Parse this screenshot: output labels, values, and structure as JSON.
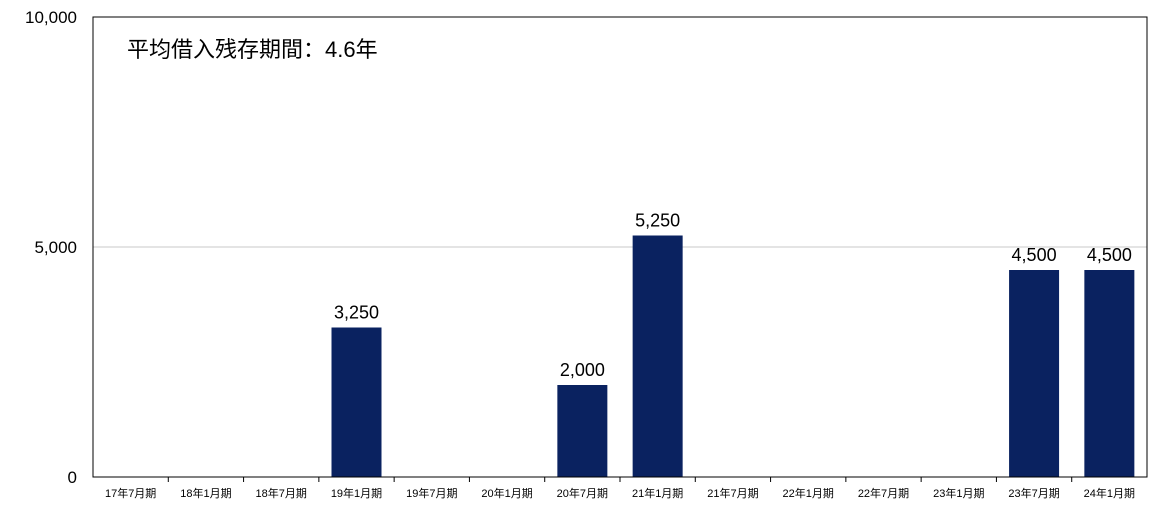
{
  "chart_data": {
    "type": "bar",
    "annotation": "平均借入残存期間：4.6年",
    "categories": [
      "17年7月期",
      "18年1月期",
      "18年7月期",
      "19年1月期",
      "19年7月期",
      "20年1月期",
      "20年7月期",
      "21年1月期",
      "21年7月期",
      "22年1月期",
      "22年7月期",
      "23年1月期",
      "23年7月期",
      "24年1月期"
    ],
    "values": [
      0,
      0,
      0,
      3250,
      0,
      0,
      2000,
      5250,
      0,
      0,
      0,
      0,
      4500,
      4500
    ],
    "value_labels": [
      "",
      "",
      "",
      "3,250",
      "",
      "",
      "2,000",
      "5,250",
      "",
      "",
      "",
      "",
      "4,500",
      "4,500"
    ],
    "ylim": [
      0,
      10000
    ],
    "yticks": [
      0,
      5000,
      10000
    ],
    "ytick_labels": [
      "0",
      "5,000",
      "10,000"
    ],
    "grid": true,
    "bar_color": "#0a2260",
    "grid_color": "#c8c8c8"
  }
}
